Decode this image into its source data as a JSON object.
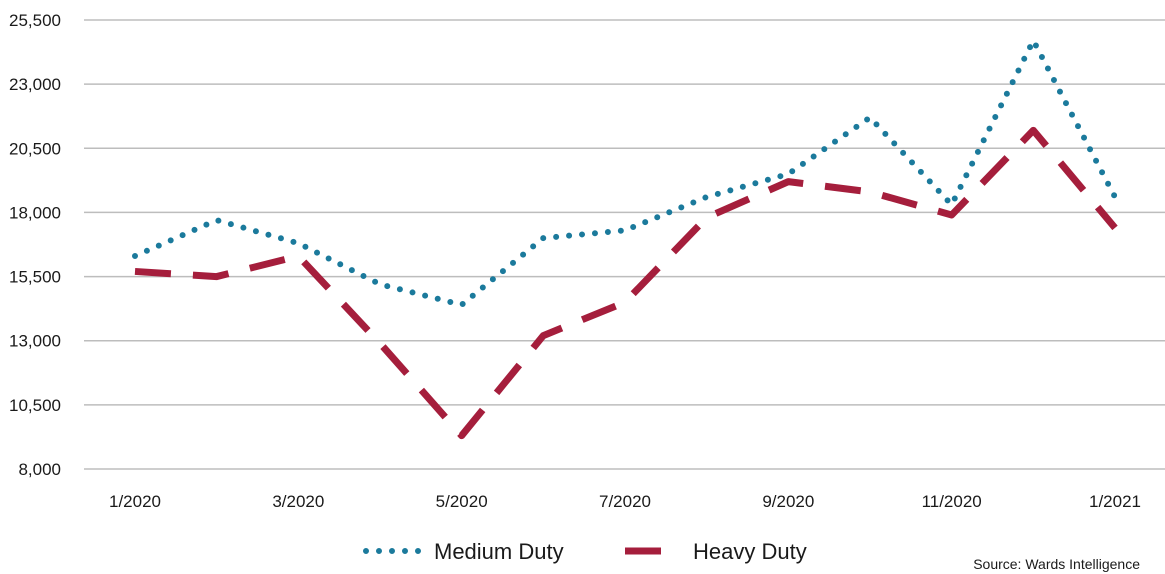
{
  "chart_data": {
    "type": "line",
    "x": [
      "1/2020",
      "2/2020",
      "3/2020",
      "4/2020",
      "5/2020",
      "6/2020",
      "7/2020",
      "8/2020",
      "9/2020",
      "10/2020",
      "11/2020",
      "12/2020",
      "1/2021"
    ],
    "x_tick_labels": [
      "1/2020",
      "3/2020",
      "5/2020",
      "7/2020",
      "9/2020",
      "11/2020",
      "1/2021"
    ],
    "ylim": [
      8000,
      25500
    ],
    "y_ticks": [
      8000,
      10500,
      13000,
      15500,
      18000,
      20500,
      23000,
      25500
    ],
    "y_tick_labels": [
      "8,000",
      "10,500",
      "13,000",
      "15,500",
      "18,000",
      "20,500",
      "23,000",
      "25,500"
    ],
    "grid": true,
    "legend_position": "bottom-center",
    "series": [
      {
        "name": "Medium Duty",
        "color": "#1b7a9c",
        "style": "dotted",
        "values": [
          16300,
          17700,
          16800,
          15200,
          14400,
          17000,
          17300,
          18600,
          19500,
          21700,
          18300,
          24700,
          18600
        ]
      },
      {
        "name": "Heavy Duty",
        "color": "#a51e3c",
        "style": "dashed",
        "values": [
          15700,
          15500,
          16300,
          12900,
          9300,
          13200,
          14500,
          17800,
          19200,
          18800,
          17900,
          21200,
          17400
        ]
      }
    ],
    "source": "Source: Wards Intelligence"
  }
}
